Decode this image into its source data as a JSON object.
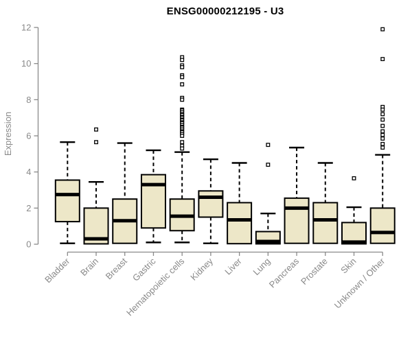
{
  "chart_data": {
    "type": "box",
    "title": "ENSG00000212195 - U3",
    "ylabel": "Expression",
    "xlabel": "",
    "ylim": [
      0,
      12
    ],
    "yticks": [
      0,
      2,
      4,
      6,
      8,
      10,
      12
    ],
    "grid": false,
    "legend": false,
    "colors": {
      "box_fill": "#EDE7C8",
      "box_stroke": "#000000",
      "median": "#000000",
      "whisker": "#000000",
      "axis": "#898989",
      "tick_text": "#898989",
      "outlier_fill": "#ffffff",
      "outlier_stroke": "#000000",
      "background": "#ffffff"
    },
    "categories": [
      "Bladder",
      "Brain",
      "Breast",
      "Gastric",
      "Hematopoietic cells",
      "Kidney",
      "Liver",
      "Lung",
      "Pancreas",
      "Prostate",
      "Skin",
      "Unknown / Other"
    ],
    "series": [
      {
        "category": "Bladder",
        "low": 0.05,
        "q1": 1.25,
        "median": 2.75,
        "q3": 3.55,
        "high": 5.65,
        "outliers": []
      },
      {
        "category": "Brain",
        "low": 0.02,
        "q1": 0.02,
        "median": 0.3,
        "q3": 2.0,
        "high": 3.45,
        "outliers": [
          6.35,
          5.65
        ]
      },
      {
        "category": "Breast",
        "low": 0.05,
        "q1": 0.05,
        "median": 1.3,
        "q3": 2.5,
        "high": 5.6,
        "outliers": []
      },
      {
        "category": "Gastric",
        "low": 0.1,
        "q1": 0.9,
        "median": 3.3,
        "q3": 3.85,
        "high": 5.2,
        "outliers": []
      },
      {
        "category": "Hematopoietic cells",
        "low": 0.1,
        "q1": 0.75,
        "median": 1.55,
        "q3": 2.5,
        "high": 5.1,
        "outliers": [
          10.35,
          10.2,
          9.9,
          9.8,
          9.35,
          9.25,
          8.85,
          8.1,
          8.0,
          7.45,
          7.4,
          7.3,
          7.2,
          7.15,
          7.05,
          7.0,
          6.9,
          6.85,
          6.75,
          6.7,
          6.6,
          6.5,
          6.45,
          6.35,
          6.25,
          6.2,
          6.1,
          6.0,
          5.65,
          5.45,
          5.3
        ]
      },
      {
        "category": "Kidney",
        "low": 0.05,
        "q1": 1.5,
        "median": 2.6,
        "q3": 2.95,
        "high": 4.7,
        "outliers": []
      },
      {
        "category": "Liver",
        "low": 0.03,
        "q1": 0.03,
        "median": 1.35,
        "q3": 2.3,
        "high": 4.5,
        "outliers": []
      },
      {
        "category": "Lung",
        "low": 0.02,
        "q1": 0.02,
        "median": 0.15,
        "q3": 0.7,
        "high": 1.7,
        "outliers": [
          5.5,
          4.4
        ]
      },
      {
        "category": "Pancreas",
        "low": 0.05,
        "q1": 0.05,
        "median": 2.0,
        "q3": 2.55,
        "high": 5.35,
        "outliers": []
      },
      {
        "category": "Prostate",
        "low": 0.05,
        "q1": 0.05,
        "median": 1.35,
        "q3": 2.3,
        "high": 4.5,
        "outliers": []
      },
      {
        "category": "Skin",
        "low": 0.02,
        "q1": 0.02,
        "median": 0.12,
        "q3": 1.2,
        "high": 2.05,
        "outliers": [
          3.65
        ]
      },
      {
        "category": "Unknown / Other",
        "low": 0.05,
        "q1": 0.05,
        "median": 0.65,
        "q3": 2.0,
        "high": 4.95,
        "outliers": [
          11.9,
          10.25,
          7.6,
          7.45,
          7.2,
          6.9,
          6.55,
          6.25,
          6.05,
          5.85,
          5.55,
          5.35
        ]
      }
    ]
  }
}
